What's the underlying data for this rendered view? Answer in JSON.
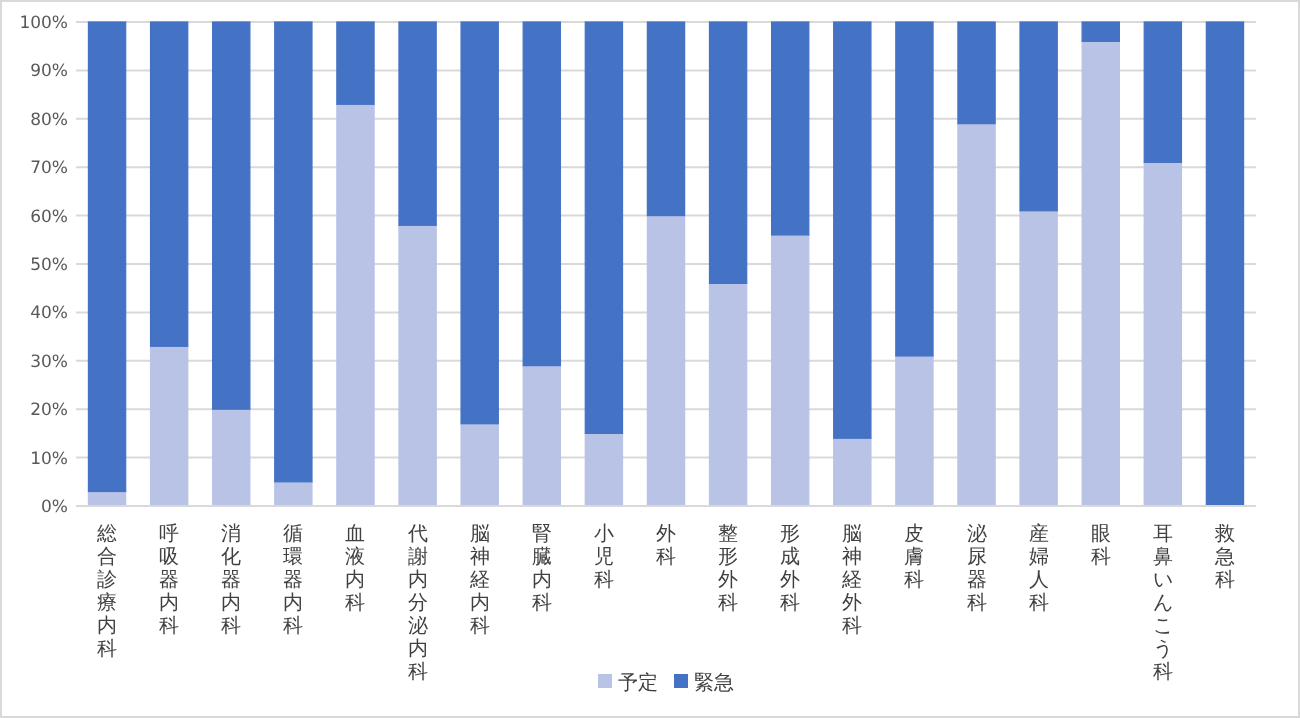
{
  "chart_data": {
    "type": "bar",
    "stacked": true,
    "categories": [
      "総合診療内科",
      "呼吸器内科",
      "消化器内科",
      "循環器内科",
      "血液内科",
      "代謝内分泌内科",
      "脳神経内科",
      "腎臓内科",
      "小児科",
      "外科",
      "整形外科",
      "形成外科",
      "脳神経外科",
      "皮膚科",
      "泌尿器科",
      "産婦人科",
      "眼科",
      "耳鼻いんこう科",
      "救急科"
    ],
    "series": [
      {
        "name": "予定",
        "color": "#b8c3e6",
        "values": [
          3,
          33,
          20,
          5,
          83,
          58,
          17,
          29,
          15,
          60,
          46,
          56,
          14,
          31,
          79,
          61,
          96,
          71,
          0
        ]
      },
      {
        "name": "緊急",
        "color": "#4472c4",
        "values": [
          97,
          67,
          80,
          95,
          17,
          42,
          83,
          71,
          85,
          40,
          54,
          44,
          86,
          69,
          21,
          39,
          4,
          29,
          100
        ]
      }
    ],
    "ylim": [
      0,
      100
    ],
    "yticks": [
      {
        "value": 0,
        "label": "0%"
      },
      {
        "value": 10,
        "label": "10%"
      },
      {
        "value": 20,
        "label": "20%"
      },
      {
        "value": 30,
        "label": "30%"
      },
      {
        "value": 40,
        "label": "40%"
      },
      {
        "value": 50,
        "label": "50%"
      },
      {
        "value": 60,
        "label": "60%"
      },
      {
        "value": 70,
        "label": "70%"
      },
      {
        "value": 80,
        "label": "80%"
      },
      {
        "value": 90,
        "label": "90%"
      },
      {
        "value": 100,
        "label": "100%"
      }
    ],
    "grid": "y",
    "legend": "bottom"
  }
}
